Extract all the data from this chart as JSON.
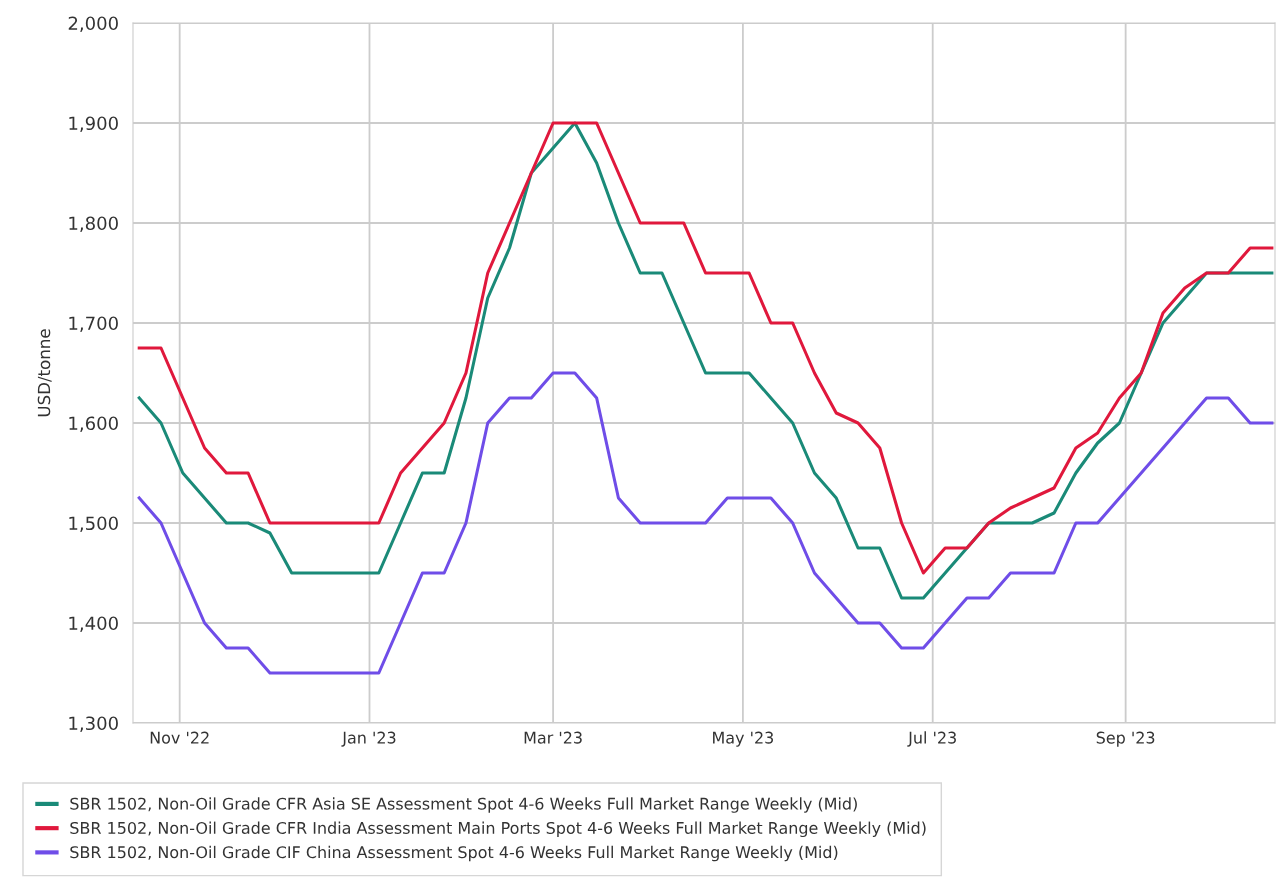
{
  "chart_data": {
    "type": "line",
    "ylabel": "USD/tonne",
    "x": [
      "2022-10-19",
      "2022-10-26",
      "2022-11-02",
      "2022-11-09",
      "2022-11-16",
      "2022-11-23",
      "2022-11-30",
      "2022-12-07",
      "2022-12-14",
      "2022-12-21",
      "2022-12-28",
      "2023-01-04",
      "2023-01-11",
      "2023-01-18",
      "2023-01-25",
      "2023-02-01",
      "2023-02-08",
      "2023-02-15",
      "2023-02-22",
      "2023-03-01",
      "2023-03-08",
      "2023-03-15",
      "2023-03-22",
      "2023-03-29",
      "2023-04-05",
      "2023-04-12",
      "2023-04-19",
      "2023-04-26",
      "2023-05-03",
      "2023-05-10",
      "2023-05-17",
      "2023-05-24",
      "2023-05-31",
      "2023-06-07",
      "2023-06-14",
      "2023-06-21",
      "2023-06-28",
      "2023-07-05",
      "2023-07-12",
      "2023-07-19",
      "2023-07-26",
      "2023-08-02",
      "2023-08-09",
      "2023-08-16",
      "2023-08-23",
      "2023-08-30",
      "2023-09-06",
      "2023-09-13",
      "2023-09-20",
      "2023-09-27",
      "2023-10-04",
      "2023-10-11",
      "2023-10-18"
    ],
    "series": [
      {
        "name": "SBR 1502, Non-Oil Grade CFR Asia SE Assessment Spot 4-6 Weeks Full Market Range Weekly (Mid)",
        "color": "#1a8a78",
        "values": [
          1625,
          1600,
          1550,
          1525,
          1500,
          1500,
          1490,
          1450,
          1450,
          1450,
          1450,
          1450,
          1500,
          1550,
          1550,
          1625,
          1725,
          1775,
          1850,
          1875,
          1900,
          1860,
          1800,
          1750,
          1750,
          1700,
          1650,
          1650,
          1650,
          1625,
          1600,
          1550,
          1525,
          1475,
          1475,
          1425,
          1425,
          1450,
          1475,
          1500,
          1500,
          1500,
          1510,
          1550,
          1580,
          1600,
          1650,
          1700,
          1725,
          1750,
          1750,
          1750,
          1750
        ]
      },
      {
        "name": "SBR 1502, Non-Oil Grade CFR India Assessment Main Ports Spot 4-6 Weeks Full Market Range Weekly (Mid)",
        "color": "#e0183c",
        "values": [
          1675,
          1675,
          1625,
          1575,
          1550,
          1550,
          1500,
          1500,
          1500,
          1500,
          1500,
          1500,
          1550,
          1575,
          1600,
          1650,
          1750,
          1800,
          1850,
          1900,
          1900,
          1900,
          1850,
          1800,
          1800,
          1800,
          1750,
          1750,
          1750,
          1700,
          1700,
          1650,
          1610,
          1600,
          1575,
          1500,
          1450,
          1475,
          1475,
          1500,
          1515,
          1525,
          1535,
          1575,
          1590,
          1625,
          1650,
          1710,
          1735,
          1750,
          1750,
          1775,
          1775
        ]
      },
      {
        "name": "SBR 1502, Non-Oil Grade CIF China Assessment Spot 4-6 Weeks Full Market Range Weekly (Mid)",
        "color": "#6f4de8",
        "values": [
          1525,
          1500,
          1450,
          1400,
          1375,
          1375,
          1350,
          1350,
          1350,
          1350,
          1350,
          1350,
          1400,
          1450,
          1450,
          1500,
          1600,
          1625,
          1625,
          1650,
          1650,
          1625,
          1525,
          1500,
          1500,
          1500,
          1500,
          1525,
          1525,
          1525,
          1500,
          1450,
          1425,
          1400,
          1400,
          1375,
          1375,
          1400,
          1425,
          1425,
          1450,
          1450,
          1450,
          1500,
          1500,
          1525,
          1550,
          1575,
          1600,
          1625,
          1625,
          1600,
          1600
        ]
      }
    ],
    "xlim": [
      "2022-10-17",
      "2023-10-19"
    ],
    "xticks": [
      {
        "value": "2022-11-01",
        "label": "Nov '22"
      },
      {
        "value": "2023-01-01",
        "label": "Jan '23"
      },
      {
        "value": "2023-03-01",
        "label": "Mar '23"
      },
      {
        "value": "2023-05-01",
        "label": "May '23"
      },
      {
        "value": "2023-07-01",
        "label": "Jul '23"
      },
      {
        "value": "2023-09-01",
        "label": "Sep '23"
      }
    ],
    "ylim": [
      1300,
      2000
    ],
    "yticks": [
      {
        "value": 1300,
        "label": "1,300"
      },
      {
        "value": 1400,
        "label": "1,400"
      },
      {
        "value": 1500,
        "label": "1,500"
      },
      {
        "value": 1600,
        "label": "1,600"
      },
      {
        "value": 1700,
        "label": "1,700"
      },
      {
        "value": 1800,
        "label": "1,800"
      },
      {
        "value": 1900,
        "label": "1,900"
      },
      {
        "value": 2000,
        "label": "2,000"
      }
    ],
    "grid": true,
    "legend": "bottom",
    "marker": "none",
    "line_style": "solid"
  }
}
